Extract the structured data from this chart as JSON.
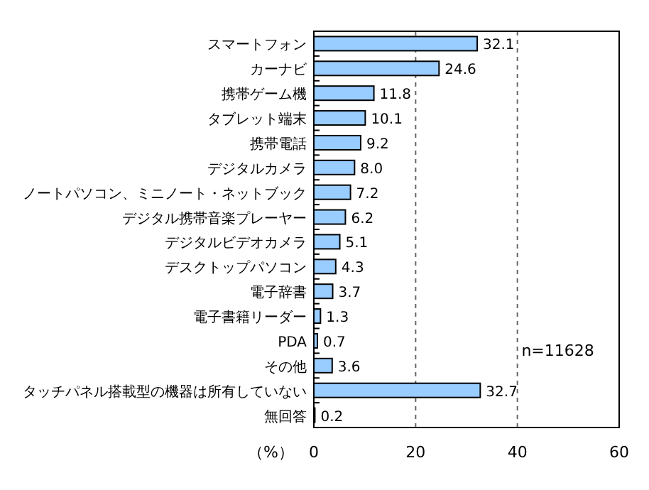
{
  "chart_data": {
    "type": "bar",
    "orientation": "horizontal",
    "xlabel": "（%）",
    "categories": [
      "スマートフォン",
      "カーナビ",
      "携帯ゲーム機",
      "タブレット端末",
      "携帯電話",
      "デジタルカメラ",
      "ノートパソコン、ミニノート・ネットブック",
      "デジタル携帯音楽プレーヤー",
      "デジタルビデオカメラ",
      "デスクトップパソコン",
      "電子辞書",
      "電子書籍リーダー",
      "PDA",
      "その他",
      "タッチパネル搭載型の機器は所有していない",
      "無回答"
    ],
    "values": [
      32.1,
      24.6,
      11.8,
      10.1,
      9.2,
      8.0,
      7.2,
      6.2,
      5.1,
      4.3,
      3.7,
      1.3,
      0.7,
      3.6,
      32.7,
      0.2
    ],
    "value_labels": [
      "32.1",
      "24.6",
      "11.8",
      "10.1",
      "9.2",
      "8.0",
      "7.2",
      "6.2",
      "5.1",
      "4.3",
      "3.7",
      "1.3",
      "0.7",
      "3.6",
      "32.7",
      "0.2"
    ],
    "color": "#99ccff",
    "xlim": [
      0,
      60
    ],
    "xticks": [
      0,
      20,
      40,
      60
    ],
    "grid": "x",
    "annotations": [
      "n=11628"
    ]
  }
}
